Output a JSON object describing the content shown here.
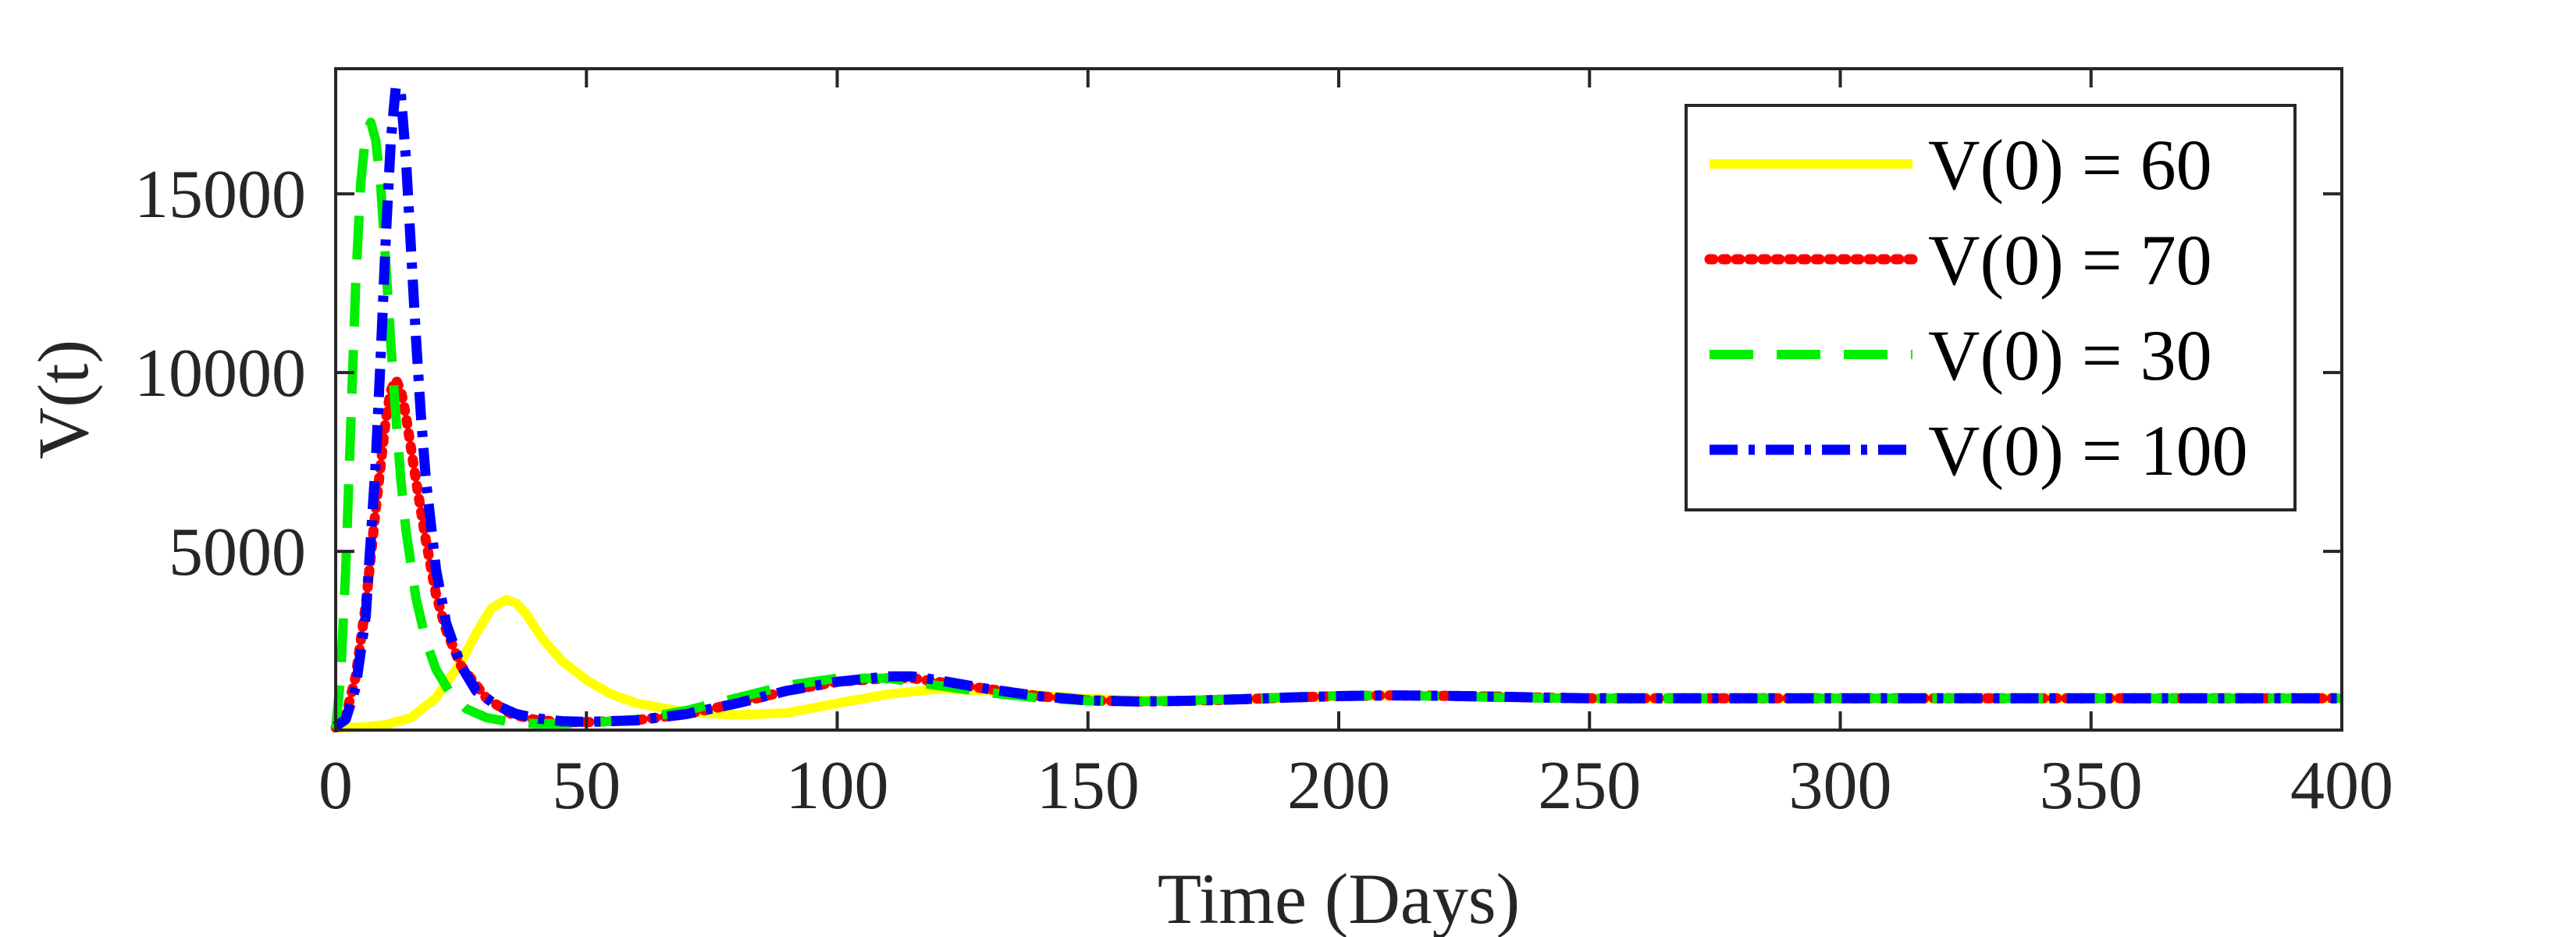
{
  "chart_data": {
    "type": "line",
    "title": "",
    "xlabel": "Time (Days)",
    "ylabel": "V(t)",
    "xlim": [
      0,
      400
    ],
    "ylim": [
      0,
      18500
    ],
    "xticks": [
      0,
      50,
      100,
      150,
      200,
      250,
      300,
      350,
      400
    ],
    "yticks": [
      5000,
      10000,
      15000
    ],
    "xtick_labels": [
      "0",
      "50",
      "100",
      "150",
      "200",
      "250",
      "300",
      "350",
      "400"
    ],
    "ytick_labels": [
      "5000",
      "10000",
      "15000"
    ],
    "grid": false,
    "legend_position": "top-right",
    "series": [
      {
        "name": "V(0) = 60",
        "color": "#FFFF00",
        "style": "solid",
        "x": [
          0,
          5,
          10,
          15,
          20,
          25,
          28,
          31,
          34,
          36,
          38,
          41,
          45,
          50,
          55,
          60,
          70,
          80,
          90,
          100,
          110,
          120,
          130,
          140,
          150,
          160,
          170,
          180,
          190,
          200,
          210,
          220,
          230,
          240,
          250,
          275,
          300,
          325,
          350,
          375,
          400
        ],
        "y": [
          60,
          80,
          150,
          350,
          900,
          1900,
          2700,
          3400,
          3650,
          3550,
          3250,
          2600,
          1950,
          1400,
          1000,
          750,
          500,
          420,
          480,
          750,
          1000,
          1150,
          1100,
          980,
          880,
          830,
          820,
          850,
          900,
          950,
          970,
          960,
          930,
          900,
          880,
          880,
          890,
          890,
          890,
          890,
          890
        ]
      },
      {
        "name": "V(0) = 70",
        "color": "#FF0000",
        "style": "dotted",
        "x": [
          0,
          2,
          4,
          6,
          8,
          10,
          11,
          12,
          13,
          14,
          16,
          18,
          20,
          22,
          25,
          30,
          35,
          40,
          45,
          50,
          60,
          70,
          80,
          90,
          100,
          110,
          115,
          120,
          130,
          140,
          150,
          160,
          170,
          180,
          190,
          200,
          210,
          220,
          230,
          240,
          250,
          275,
          300,
          325,
          350,
          375,
          400
        ],
        "y": [
          70,
          400,
          1500,
          3500,
          6200,
          8700,
          9500,
          9800,
          9500,
          8800,
          7000,
          5300,
          3800,
          2800,
          1800,
          900,
          450,
          280,
          230,
          220,
          280,
          450,
          750,
          1100,
          1350,
          1450,
          1450,
          1350,
          1150,
          950,
          830,
          800,
          820,
          860,
          910,
          950,
          970,
          960,
          940,
          910,
          890,
          890,
          890,
          890,
          890,
          890,
          890
        ]
      },
      {
        "name": "V(0) = 30",
        "color": "#00EE00",
        "style": "dashed",
        "x": [
          0,
          1,
          2,
          3,
          4,
          5,
          6,
          7,
          8,
          9,
          10,
          11,
          12,
          13,
          14,
          16,
          18,
          20,
          23,
          26,
          30,
          35,
          40,
          45,
          50,
          60,
          70,
          80,
          90,
          100,
          110,
          115,
          120,
          130,
          140,
          150,
          160,
          170,
          180,
          190,
          200,
          210,
          220,
          230,
          240,
          250,
          275,
          300,
          325,
          350,
          375,
          400
        ],
        "y": [
          30,
          1500,
          4500,
          8500,
          12500,
          15300,
          16700,
          17000,
          16500,
          15200,
          13000,
          10800,
          8800,
          7000,
          5600,
          3700,
          2500,
          1700,
          1000,
          600,
          350,
          220,
          180,
          180,
          200,
          300,
          550,
          900,
          1250,
          1450,
          1450,
          1350,
          1250,
          1050,
          900,
          820,
          800,
          830,
          870,
          920,
          960,
          970,
          950,
          920,
          900,
          890,
          890,
          890,
          890,
          890,
          890,
          890
        ]
      },
      {
        "name": "V(0) = 100",
        "color": "#0000FF",
        "style": "dashdot",
        "x": [
          0,
          2,
          4,
          6,
          8,
          9,
          10,
          11,
          12,
          13,
          14,
          15,
          16,
          17,
          18,
          20,
          22,
          25,
          28,
          32,
          36,
          40,
          45,
          50,
          60,
          70,
          80,
          90,
          100,
          110,
          115,
          120,
          130,
          140,
          150,
          160,
          170,
          180,
          190,
          200,
          210,
          220,
          230,
          240,
          250,
          275,
          300,
          325,
          350,
          375,
          400
        ],
        "y": [
          100,
          300,
          1200,
          3200,
          7500,
          10500,
          13800,
          16500,
          18000,
          17800,
          16000,
          13500,
          11000,
          8800,
          7000,
          4500,
          3000,
          1800,
          1100,
          700,
          450,
          330,
          250,
          230,
          270,
          450,
          750,
          1100,
          1350,
          1500,
          1500,
          1400,
          1150,
          950,
          830,
          800,
          820,
          860,
          910,
          950,
          970,
          960,
          940,
          910,
          890,
          890,
          890,
          890,
          890,
          890,
          890
        ]
      }
    ]
  }
}
